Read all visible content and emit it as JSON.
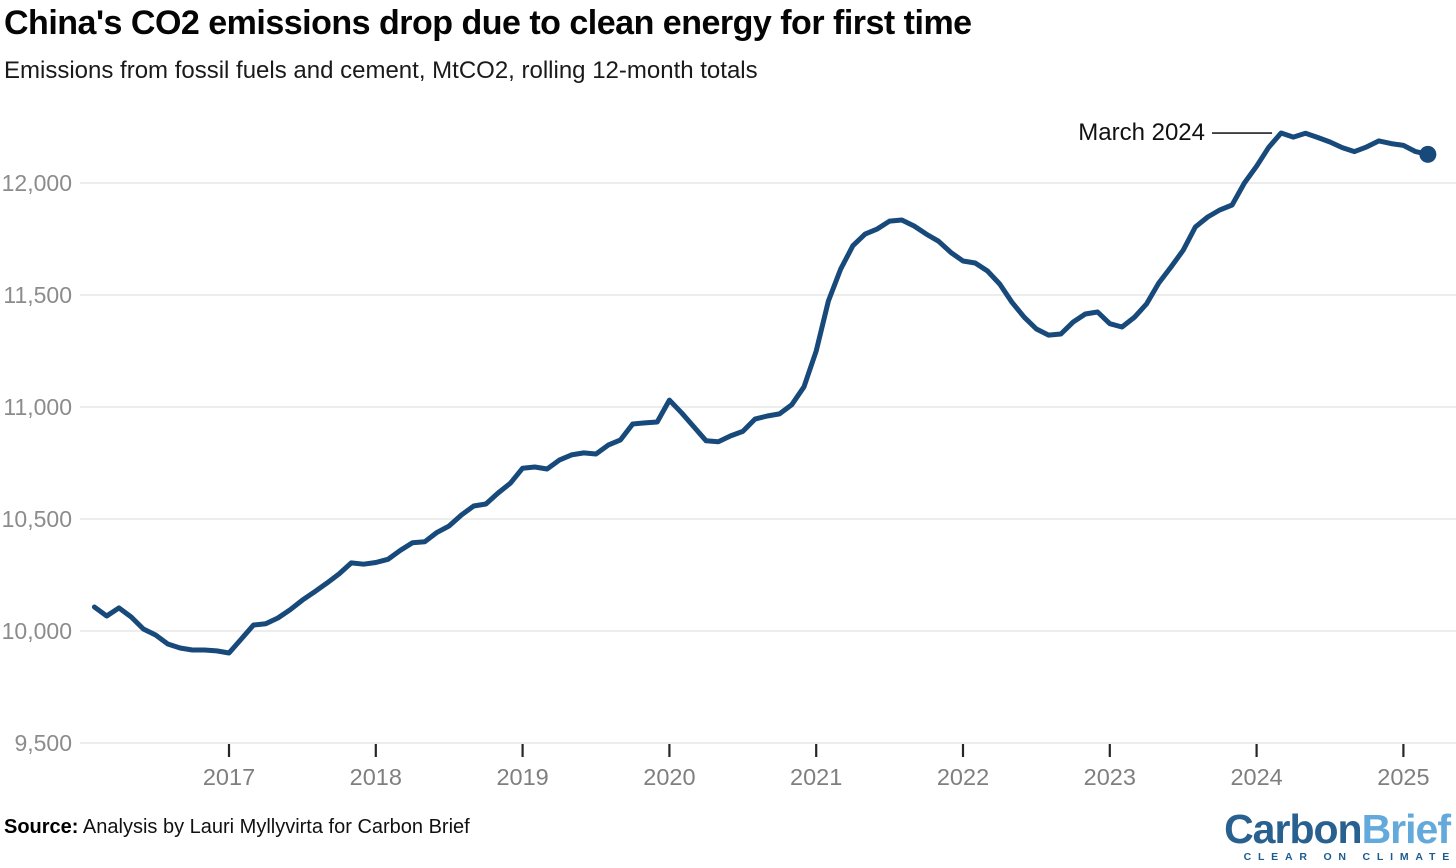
{
  "header": {
    "title": "China's CO2 emissions drop due to clean energy for first time",
    "subtitle": "Emissions from fossil fuels and cement, MtCO2, rolling 12-month totals"
  },
  "footer": {
    "source_label": "Source:",
    "source_text": " Analysis by Lauri Myllyvirta for Carbon Brief",
    "logo": {
      "part1": "Carbon",
      "part2": "Brief",
      "tagline": "CLEAR ON CLIMATE",
      "color_part1": "#28618F",
      "color_part2": "#64A9DB",
      "color_tagline": "#1D5C8F"
    }
  },
  "chart_data": {
    "type": "line",
    "title": "China's CO2 emissions drop due to clean energy for first time",
    "subtitle": "Emissions from fossil fuels and cement, MtCO2, rolling 12-month totals",
    "series_name": "China CO2 emissions from fossil fuels and cement, rolling 12-month total",
    "unit": "MtCO2",
    "frequency": "monthly",
    "grid": "horizontal",
    "legend": "none",
    "line_color": "#17497A",
    "grid_color": "#e7e7e7",
    "tick_color": "#262626",
    "axis_label_color": "#8c8c8c",
    "ylim": [
      9500,
      12250
    ],
    "xticks": [
      "2017",
      "2018",
      "2019",
      "2020",
      "2021",
      "2022",
      "2023",
      "2024",
      "2025"
    ],
    "ytick_values": [
      12000,
      11500,
      11000,
      10500,
      10000,
      9500
    ],
    "ytick_labels": [
      "12,000",
      "11,500",
      "11,000",
      "10,500",
      "10,000",
      "9,500"
    ],
    "annotation": {
      "label": "March 2024",
      "x": "2024-03",
      "value": 12223
    },
    "end_marker": {
      "x": "2025-03",
      "value": 12128
    },
    "x": [
      "2016-02",
      "2016-03",
      "2016-04",
      "2016-05",
      "2016-06",
      "2016-07",
      "2016-08",
      "2016-09",
      "2016-10",
      "2016-11",
      "2016-12",
      "2017-01",
      "2017-02",
      "2017-03",
      "2017-04",
      "2017-05",
      "2017-06",
      "2017-07",
      "2017-08",
      "2017-09",
      "2017-10",
      "2017-11",
      "2017-12",
      "2018-01",
      "2018-02",
      "2018-03",
      "2018-04",
      "2018-05",
      "2018-06",
      "2018-07",
      "2018-08",
      "2018-09",
      "2018-10",
      "2018-11",
      "2018-12",
      "2019-01",
      "2019-02",
      "2019-03",
      "2019-04",
      "2019-05",
      "2019-06",
      "2019-07",
      "2019-08",
      "2019-09",
      "2019-10",
      "2019-11",
      "2019-12",
      "2020-01",
      "2020-02",
      "2020-03",
      "2020-04",
      "2020-05",
      "2020-06",
      "2020-07",
      "2020-08",
      "2020-09",
      "2020-10",
      "2020-11",
      "2020-12",
      "2021-01",
      "2021-02",
      "2021-03",
      "2021-04",
      "2021-05",
      "2021-06",
      "2021-07",
      "2021-08",
      "2021-09",
      "2021-10",
      "2021-11",
      "2021-12",
      "2022-01",
      "2022-02",
      "2022-03",
      "2022-04",
      "2022-05",
      "2022-06",
      "2022-07",
      "2022-08",
      "2022-09",
      "2022-10",
      "2022-11",
      "2022-12",
      "2023-01",
      "2023-02",
      "2023-03",
      "2023-04",
      "2023-05",
      "2023-06",
      "2023-07",
      "2023-08",
      "2023-09",
      "2023-10",
      "2023-11",
      "2023-12",
      "2024-01",
      "2024-02",
      "2024-03",
      "2024-04",
      "2024-05",
      "2024-06",
      "2024-07",
      "2024-08",
      "2024-09",
      "2024-10",
      "2024-11",
      "2024-12",
      "2025-01",
      "2025-02",
      "2025-03"
    ],
    "values": [
      10107,
      10067,
      10103,
      10063,
      10009,
      9982,
      9942,
      9924,
      9915,
      9915,
      9911,
      9902,
      9964,
      10027,
      10032,
      10058,
      10095,
      10138,
      10175,
      10214,
      10255,
      10304,
      10298,
      10306,
      10320,
      10360,
      10394,
      10398,
      10440,
      10469,
      10518,
      10558,
      10567,
      10616,
      10660,
      10727,
      10732,
      10723,
      10763,
      10786,
      10795,
      10790,
      10830,
      10853,
      10924,
      10929,
      10933,
      11031,
      10974,
      10911,
      10849,
      10845,
      10871,
      10891,
      10946,
      10960,
      10969,
      11010,
      11090,
      11250,
      11473,
      11616,
      11720,
      11772,
      11795,
      11830,
      11835,
      11808,
      11772,
      11740,
      11690,
      11652,
      11643,
      11607,
      11549,
      11468,
      11401,
      11348,
      11321,
      11326,
      11379,
      11415,
      11424,
      11372,
      11357,
      11400,
      11460,
      11553,
      11625,
      11700,
      11804,
      11848,
      11880,
      11902,
      12000,
      12075,
      12160,
      12223,
      12205,
      12222,
      12203,
      12183,
      12158,
      12140,
      12161,
      12188,
      12176,
      12168,
      12140,
      12128
    ]
  }
}
